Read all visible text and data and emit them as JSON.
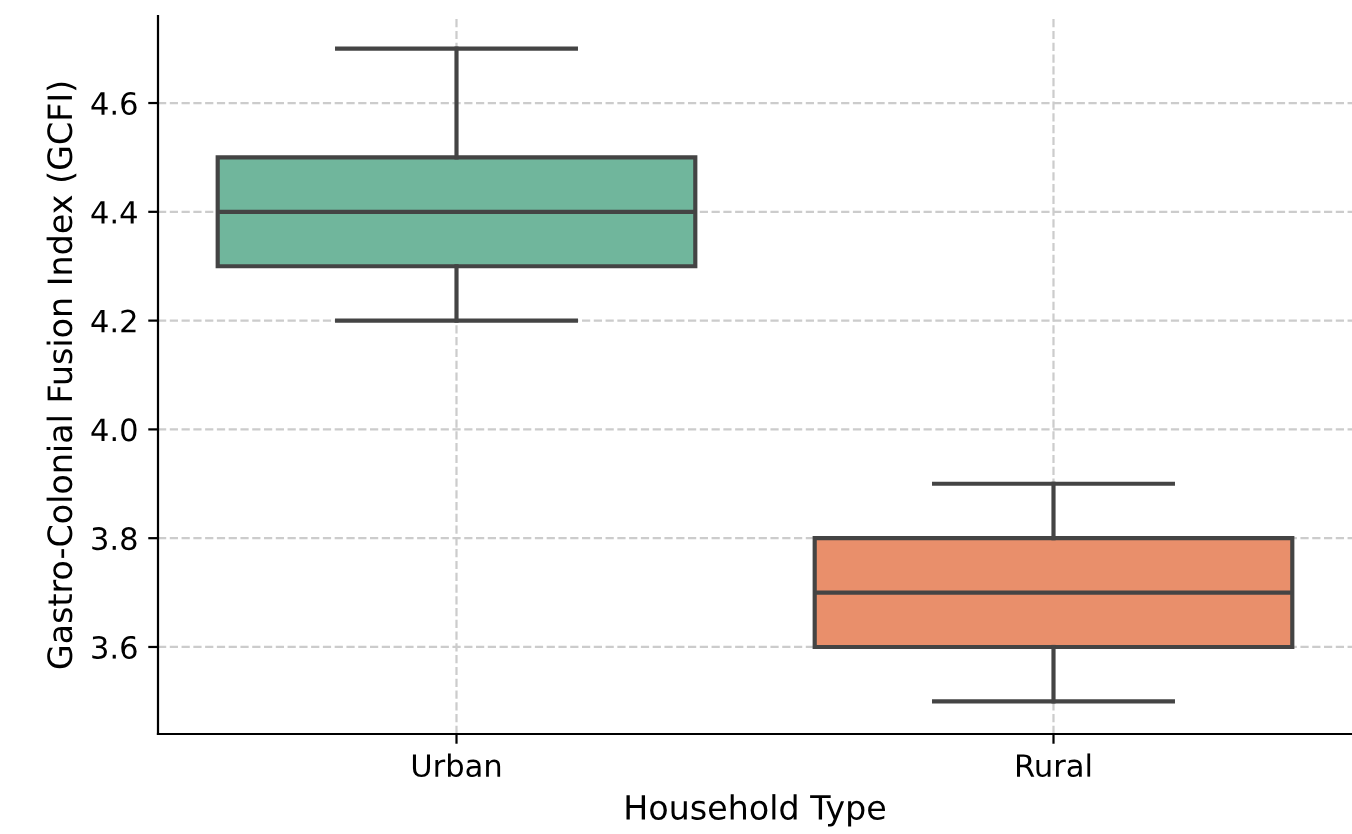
{
  "chart_data": {
    "type": "box",
    "xlabel": "Household Type",
    "ylabel": "Gastro-Colonial Fusion Index (GCFI)",
    "categories": [
      "Urban",
      "Rural"
    ],
    "boxes": [
      {
        "low": 4.2,
        "q1": 4.3,
        "median": 4.4,
        "q3": 4.5,
        "high": 4.7
      },
      {
        "low": 3.5,
        "q1": 3.6,
        "median": 3.7,
        "q3": 3.8,
        "high": 3.9
      }
    ],
    "colors": [
      "#70b69c",
      "#e98f6b"
    ],
    "ylim": [
      3.44,
      4.76
    ],
    "yticks": [
      3.6,
      3.8,
      {
        "value": 4,
        "label": "4.0"
      },
      4.2,
      4.4,
      4.6
    ],
    "grid": true
  }
}
